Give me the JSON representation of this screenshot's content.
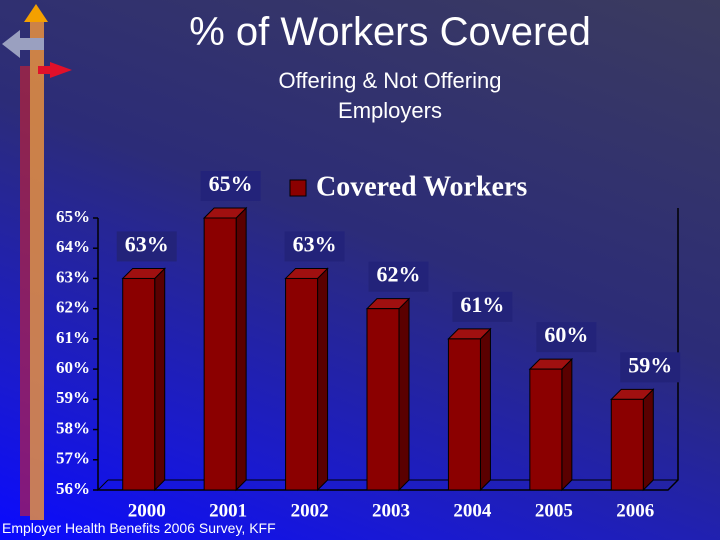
{
  "title": "% of Workers Covered",
  "subtitle": "Offering & Not Offering Employers",
  "source": "Employer Health Benefits 2006 Survey, KFF",
  "chart_data": {
    "type": "bar3d",
    "categories": [
      "2000",
      "2001",
      "2002",
      "2003",
      "2004",
      "2005",
      "2006"
    ],
    "series": [
      {
        "name": "Covered Workers",
        "color": "#8b0000",
        "values": [
          63,
          65,
          63,
          62,
          61,
          60,
          59
        ],
        "value_labels": [
          "63%",
          "65%",
          "63%",
          "62%",
          "61%",
          "60%",
          "59%"
        ]
      }
    ],
    "ylim": [
      56,
      65
    ],
    "yticks": [
      {
        "value": 56,
        "label": "56%"
      },
      {
        "value": 57,
        "label": "57%"
      },
      {
        "value": 58,
        "label": "58%"
      },
      {
        "value": 59,
        "label": "59%"
      },
      {
        "value": 60,
        "label": "60%"
      },
      {
        "value": 61,
        "label": "61%"
      },
      {
        "value": 62,
        "label": "62%"
      },
      {
        "value": 63,
        "label": "63%"
      },
      {
        "value": 64,
        "label": "64%"
      },
      {
        "value": 65,
        "label": "65%"
      }
    ],
    "legend": "top-right"
  }
}
